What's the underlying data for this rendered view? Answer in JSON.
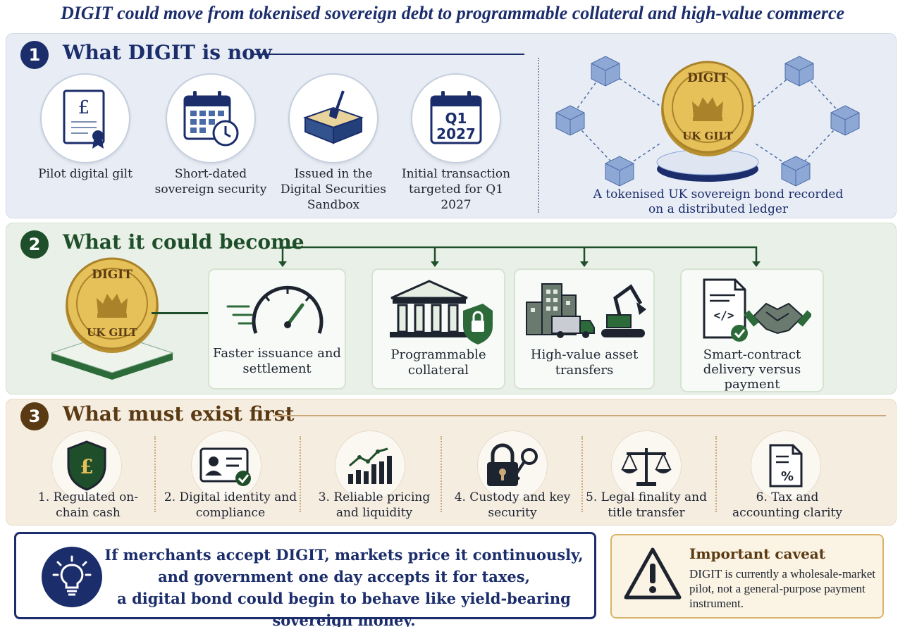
{
  "subtitle": "DIGIT could move from tokenised sovereign debt to programmable collateral and high-value commerce",
  "colors": {
    "navy": "#1b2d6b",
    "green": "#1f4f2a",
    "brown": "#5a3a12",
    "gold": "#d9b56b"
  },
  "section1": {
    "number": "1",
    "title": "What DIGIT is now",
    "items": [
      {
        "icon": "certificate-icon",
        "label": "Pilot digital gilt"
      },
      {
        "icon": "calendar-clock-icon",
        "label": "Short-dated sovereign security"
      },
      {
        "icon": "sandbox-icon",
        "label": "Issued in the Digital Securities Sandbox"
      },
      {
        "icon": "calendar-q1-icon",
        "label": "Initial transaction targeted for Q1 2027",
        "calendar_text_1": "Q1",
        "calendar_text_2": "2027"
      }
    ],
    "coin": {
      "top": "DIGIT",
      "bottom": "UK GILT"
    },
    "ledger_caption": "A tokenised UK sovereign bond recorded on a distributed ledger"
  },
  "section2": {
    "number": "2",
    "title": "What it could become",
    "coin": {
      "top": "DIGIT",
      "bottom": "UK GILT"
    },
    "items": [
      {
        "icon": "speedometer-icon",
        "label": "Faster issuance and settlement"
      },
      {
        "icon": "bank-lock-icon",
        "label": "Programmable collateral"
      },
      {
        "icon": "city-truck-excavator-icon",
        "label": "High-value asset transfers"
      },
      {
        "icon": "contract-handshake-icon",
        "label": "Smart-contract delivery versus payment"
      }
    ]
  },
  "section3": {
    "number": "3",
    "title": "What must exist first",
    "items": [
      {
        "icon": "pound-shield-icon",
        "label": "1. Regulated on-chain cash"
      },
      {
        "icon": "id-card-check-icon",
        "label": "2. Digital identity and compliance"
      },
      {
        "icon": "bar-chart-icon",
        "label": "3. Reliable pricing and liquidity"
      },
      {
        "icon": "lock-key-icon",
        "label": "4. Custody and key security"
      },
      {
        "icon": "scales-icon",
        "label": "5. Legal finality and title transfer"
      },
      {
        "icon": "tax-document-icon",
        "label": "6. Tax and accounting clarity"
      }
    ]
  },
  "callout": {
    "line1": "If merchants accept DIGIT, markets price it continuously,",
    "line2": "and government one day accepts it for taxes,",
    "line3": "a digital bond could begin to behave like yield-bearing sovereign money."
  },
  "caveat": {
    "title": "Important caveat",
    "text": "DIGIT is currently a wholesale-market pilot, not a general-purpose payment instrument."
  }
}
